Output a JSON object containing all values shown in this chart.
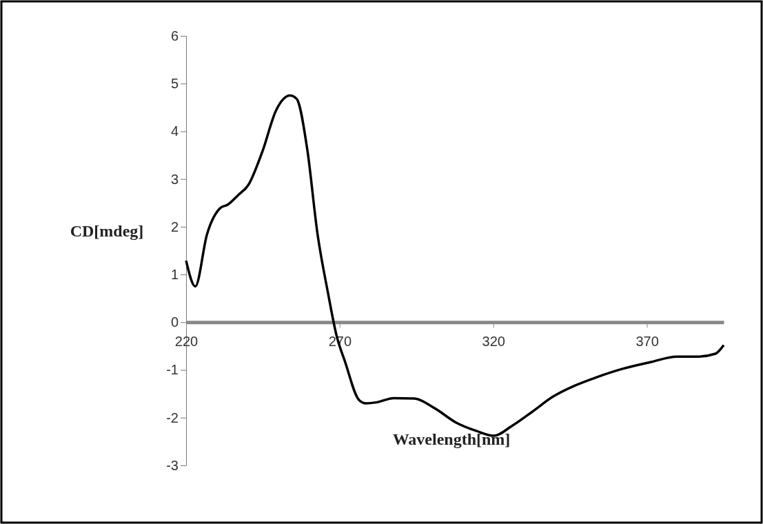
{
  "chart_data": {
    "type": "line",
    "xlabel": "Wavelength[nm]",
    "ylabel": "CD[mdeg]",
    "xlim": [
      220,
      395
    ],
    "xticks": [
      220,
      270,
      320,
      370
    ],
    "ylim": [
      -3,
      6
    ],
    "yticks": [
      -3,
      -2,
      -1,
      0,
      1,
      2,
      3,
      4,
      5,
      6
    ],
    "grid": false,
    "marker": "none",
    "line_style": "solid",
    "x": [
      220,
      223,
      226.8,
      231.3,
      233.5,
      236.9,
      240.3,
      244.8,
      249.3,
      253.8,
      256,
      259.4,
      262.8,
      266.2,
      268.9,
      271.8,
      276.3,
      278.6,
      281.9,
      287.6,
      294.3,
      301.1,
      307.8,
      314.6,
      320.2,
      325.9,
      332.6,
      339.4,
      346.1,
      352.9,
      361.9,
      370.9,
      379.9,
      386.7,
      392.3,
      395
    ],
    "series": [
      {
        "color": "#000000",
        "values": [
          1.29,
          0.75,
          1.84,
          2.4,
          2.46,
          2.66,
          2.88,
          3.57,
          4.44,
          4.75,
          4.68,
          3.64,
          1.84,
          0.61,
          -0.26,
          -0.84,
          -1.63,
          -1.7,
          -1.68,
          -1.59,
          -1.6,
          -1.81,
          -2.1,
          -2.28,
          -2.38,
          -2.18,
          -1.88,
          -1.56,
          -1.34,
          -1.17,
          -0.98,
          -0.84,
          -0.72,
          -0.72,
          -0.66,
          -0.48
        ]
      }
    ]
  }
}
